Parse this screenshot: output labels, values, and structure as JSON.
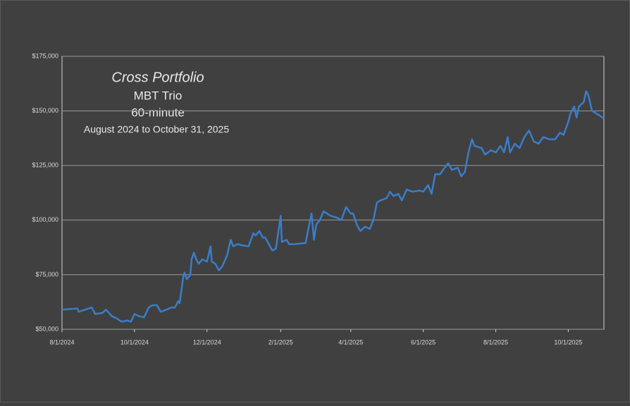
{
  "chart_data": {
    "type": "line",
    "title": "Cross Portfolio",
    "subtitle": [
      "MBT Trio",
      "60-minute",
      "August 2024 to October 31, 2025"
    ],
    "color": "#3a7dc9",
    "grid": true,
    "ylim": [
      50000,
      175000
    ],
    "yticks": [
      {
        "value": 50000,
        "label": "$50,000"
      },
      {
        "value": 75000,
        "label": "$75,000"
      },
      {
        "value": 100000,
        "label": "$100,000"
      },
      {
        "value": 125000,
        "label": "$125,000"
      },
      {
        "value": 150000,
        "label": "$150,000"
      },
      {
        "value": 175000,
        "label": "$175,000"
      }
    ],
    "xlim": [
      "8/1/2024",
      "10/31/2025"
    ],
    "xticks": [
      "8/1/2024",
      "10/1/2024",
      "12/1/2024",
      "2/1/2025",
      "4/1/2025",
      "6/1/2025",
      "8/1/2025",
      "10/1/2025"
    ],
    "x": [
      "8/1/2024",
      "8/14/2024",
      "8/15/2024",
      "8/26/2024",
      "8/29/2024",
      "9/4/2024",
      "9/7/2024",
      "9/12/2024",
      "9/16/2024",
      "9/20/2024",
      "9/25/2024",
      "9/28/2024",
      "10/1/2024",
      "10/5/2024",
      "10/9/2024",
      "10/13/2024",
      "10/16/2024",
      "10/20/2024",
      "10/23/2024",
      "10/28/2024",
      "11/1/2024",
      "11/4/2024",
      "11/7/2024",
      "11/8/2024",
      "11/11/2024",
      "11/12/2024",
      "11/14/2024",
      "11/17/2024",
      "11/18/2024",
      "11/20/2024",
      "11/22/2024",
      "11/24/2024",
      "11/27/2024",
      "12/1/2024",
      "12/4/2024",
      "12/5/2024",
      "12/8/2024",
      "12/11/2024",
      "12/14/2024",
      "12/18/2024",
      "12/21/2024",
      "12/23/2024",
      "12/27/2024",
      "12/30/2024",
      "1/5/2025",
      "1/9/2025",
      "1/11/2025",
      "1/14/2025",
      "1/17/2025",
      "1/19/2025",
      "1/22/2025",
      "1/25/2025",
      "1/28/2025",
      "2/1/2025",
      "2/2/2025",
      "2/6/2025",
      "2/8/2025",
      "2/13/2025",
      "2/22/2025",
      "2/25/2025",
      "2/27/2025",
      "3/1/2025",
      "3/3/2025",
      "3/6/2025",
      "3/9/2025",
      "3/15/2025",
      "3/21/2025",
      "3/24/2025",
      "3/28/2025",
      "4/1/2025",
      "4/3/2025",
      "4/6/2025",
      "4/9/2025",
      "4/13/2025",
      "4/17/2025",
      "4/20/2025",
      "4/23/2025",
      "4/26/2025",
      "5/1/2025",
      "5/4/2025",
      "5/7/2025",
      "5/11/2025",
      "5/14/2025",
      "5/18/2025",
      "5/23/2025",
      "5/29/2025",
      "6/1/2025",
      "6/5/2025",
      "6/8/2025",
      "6/11/2025",
      "6/15/2025",
      "6/19/2025",
      "6/22/2025",
      "6/25/2025",
      "6/30/2025",
      "7/3/2025",
      "7/6/2025",
      "7/9/2025",
      "7/12/2025",
      "7/14/2025",
      "7/20/2025",
      "7/23/2025",
      "7/28/2025",
      "8/1/2025",
      "8/5/2025",
      "8/8/2025",
      "8/11/2025",
      "8/13/2025",
      "8/17/2025",
      "8/21/2025",
      "8/25/2025",
      "8/29/2025",
      "9/2/2025",
      "9/6/2025",
      "9/10/2025",
      "9/15/2025",
      "9/20/2025",
      "9/24/2025",
      "9/27/2025",
      "10/1/2025",
      "10/3/2025",
      "10/6/2025",
      "10/8/2025",
      "10/10/2025",
      "10/14/2025",
      "10/16/2025",
      "10/18/2025",
      "10/21/2025",
      "10/27/2025",
      "10/31/2025"
    ],
    "values": [
      59000,
      59500,
      58000,
      60000,
      57000,
      57500,
      59000,
      56000,
      55000,
      53500,
      54000,
      53500,
      57000,
      56000,
      55500,
      60000,
      61000,
      61000,
      58000,
      59000,
      60000,
      60000,
      63000,
      62000,
      74000,
      76000,
      73000,
      75000,
      82000,
      85000,
      82000,
      80000,
      82000,
      81000,
      88000,
      81000,
      80000,
      77000,
      79000,
      84000,
      91000,
      88000,
      89000,
      88500,
      88000,
      94000,
      93000,
      95000,
      92000,
      92000,
      89000,
      86000,
      87000,
      102000,
      90000,
      91000,
      89000,
      89000,
      89500,
      98000,
      103000,
      91000,
      98000,
      100000,
      104000,
      102000,
      101000,
      100000,
      106000,
      103000,
      103000,
      98000,
      95000,
      97000,
      96000,
      100000,
      108000,
      109000,
      110000,
      113000,
      111000,
      112000,
      109000,
      114000,
      113000,
      113500,
      113000,
      116000,
      112000,
      121000,
      121000,
      124000,
      126000,
      123000,
      124000,
      120000,
      122000,
      131000,
      137000,
      134000,
      133000,
      130000,
      132000,
      131000,
      134000,
      131000,
      138000,
      131000,
      135000,
      133000,
      138000,
      141000,
      136000,
      135000,
      138000,
      137000,
      137000,
      140000,
      139000,
      145000,
      149000,
      152000,
      147000,
      152000,
      154000,
      159000,
      157000,
      150000,
      148000,
      146500
    ]
  }
}
